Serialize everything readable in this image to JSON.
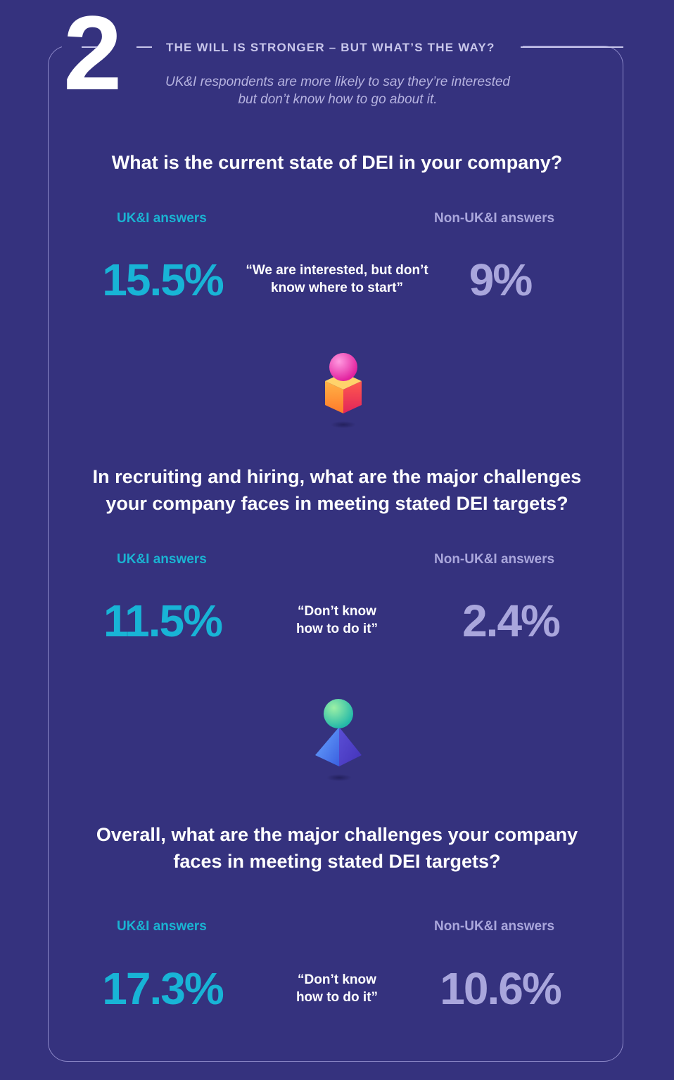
{
  "header": {
    "number": "2",
    "kicker": "THE WILL IS STRONGER – BUT WHAT’S THE WAY?",
    "subtitle_line1": "UK&I respondents are more likely to say they’re interested",
    "subtitle_line2": "but don’t know how to go about it."
  },
  "sections": [
    {
      "question_line1": "What is the current state of DEI in your company?",
      "question_line2": "",
      "uk_label": "UK&I answers",
      "non_label": "Non-UK&I answers",
      "uk_value": "15.5%",
      "non_value": "9%",
      "quote_line1": "“We are interested, but don’t",
      "quote_line2": "know where to start”"
    },
    {
      "question_line1": "In recruiting and hiring, what are the major challenges",
      "question_line2": "your company faces in meeting stated DEI targets?",
      "uk_label": "UK&I answers",
      "non_label": "Non-UK&I answers",
      "uk_value": "11.5%",
      "non_value": "2.4%",
      "quote_line1": "“Don’t know",
      "quote_line2": "how to do it”"
    },
    {
      "question_line1": "Overall, what are the major challenges your company",
      "question_line2": "faces in meeting stated DEI targets?",
      "uk_label": "UK&I answers",
      "non_label": "Non-UK&I answers",
      "uk_value": "17.3%",
      "non_value": "10.6%",
      "quote_line1": "“Don’t know",
      "quote_line2": "how to do it”"
    }
  ],
  "icons": [
    "sphere-on-cube-icon",
    "sphere-on-pyramid-icon"
  ],
  "colors": {
    "background": "#35327e",
    "uk_accent": "#18b4d6",
    "non_accent": "#a9a6dc",
    "frame": "#8c88c8"
  }
}
